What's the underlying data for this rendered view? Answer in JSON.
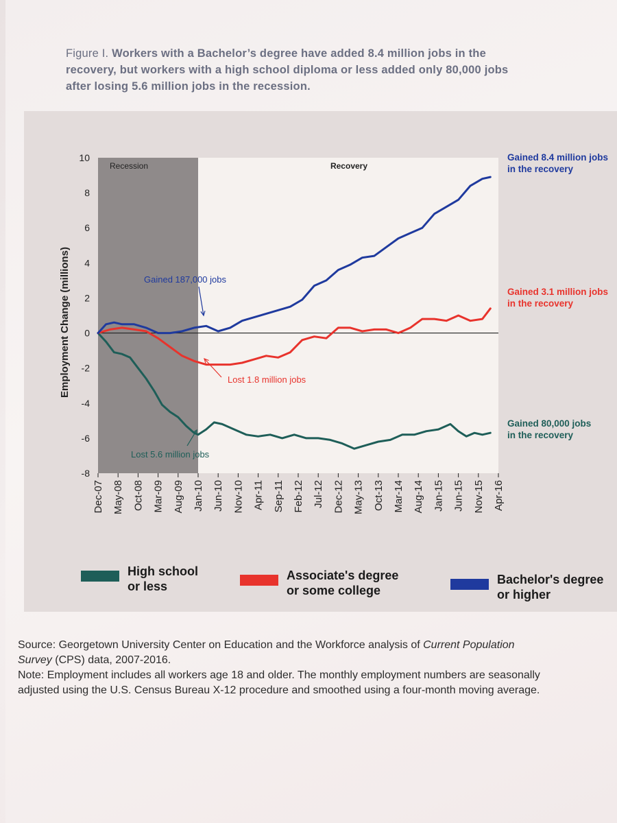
{
  "figure": {
    "label": "Figure I.",
    "title_lines": [
      "Workers with a Bachelor’s degree have added 8.4 million jobs in the",
      "recovery, but workers with a high school diploma or less added only 80,000 jobs",
      "after losing 5.6 million jobs in the recession."
    ]
  },
  "chart_data": {
    "type": "line",
    "ylabel": "Employment Change (millions)",
    "xlabel": "",
    "ylim": [
      -8,
      10
    ],
    "yticks": [
      "10",
      "8",
      "6",
      "4",
      "2",
      "0",
      "-2",
      "-4",
      "-6",
      "-8"
    ],
    "x_range": [
      "2007-12",
      "2016-04"
    ],
    "xticks": [
      "Dec-07",
      "May-08",
      "Oct-08",
      "Mar-09",
      "Aug-09",
      "Jan-10",
      "Jun-10",
      "Nov-10",
      "Apr-11",
      "Sep-11",
      "Feb-12",
      "Jul-12",
      "Dec-12",
      "May-13",
      "Oct-13",
      "Mar-14",
      "Aug-14",
      "Jan-15",
      "Jun-15",
      "Nov-15",
      "Apr-16"
    ],
    "regions": [
      {
        "label": "Recession",
        "from": "2007-12",
        "to": "2010-01",
        "shaded": true
      },
      {
        "label": "Recovery",
        "from": "2010-01",
        "to": "2016-04",
        "shaded": false
      }
    ],
    "grid": false,
    "zero_line": true,
    "series": [
      {
        "name": "High school or less",
        "color": "#1e5e58",
        "points": [
          [
            "2007-12",
            0.0
          ],
          [
            "2008-02",
            -0.5
          ],
          [
            "2008-04",
            -1.1
          ],
          [
            "2008-06",
            -1.2
          ],
          [
            "2008-08",
            -1.4
          ],
          [
            "2008-10",
            -2.0
          ],
          [
            "2008-12",
            -2.6
          ],
          [
            "2009-02",
            -3.3
          ],
          [
            "2009-04",
            -4.1
          ],
          [
            "2009-06",
            -4.5
          ],
          [
            "2009-08",
            -4.8
          ],
          [
            "2009-10",
            -5.3
          ],
          [
            "2009-12",
            -5.7
          ],
          [
            "2010-01",
            -5.8
          ],
          [
            "2010-03",
            -5.5
          ],
          [
            "2010-05",
            -5.1
          ],
          [
            "2010-07",
            -5.2
          ],
          [
            "2010-10",
            -5.5
          ],
          [
            "2011-01",
            -5.8
          ],
          [
            "2011-04",
            -5.9
          ],
          [
            "2011-07",
            -5.8
          ],
          [
            "2011-10",
            -6.0
          ],
          [
            "2012-01",
            -5.8
          ],
          [
            "2012-04",
            -6.0
          ],
          [
            "2012-07",
            -6.0
          ],
          [
            "2012-10",
            -6.1
          ],
          [
            "2013-01",
            -6.3
          ],
          [
            "2013-04",
            -6.6
          ],
          [
            "2013-07",
            -6.4
          ],
          [
            "2013-10",
            -6.2
          ],
          [
            "2014-01",
            -6.1
          ],
          [
            "2014-04",
            -5.8
          ],
          [
            "2014-07",
            -5.8
          ],
          [
            "2014-10",
            -5.6
          ],
          [
            "2015-01",
            -5.5
          ],
          [
            "2015-04",
            -5.2
          ],
          [
            "2015-06",
            -5.6
          ],
          [
            "2015-08",
            -5.9
          ],
          [
            "2015-10",
            -5.7
          ],
          [
            "2015-12",
            -5.8
          ],
          [
            "2016-02",
            -5.7
          ]
        ]
      },
      {
        "name": "Associate's degree or some college",
        "color": "#e8332c",
        "points": [
          [
            "2007-12",
            0.0
          ],
          [
            "2008-03",
            0.2
          ],
          [
            "2008-06",
            0.3
          ],
          [
            "2008-09",
            0.2
          ],
          [
            "2008-12",
            0.1
          ],
          [
            "2009-03",
            -0.3
          ],
          [
            "2009-06",
            -0.8
          ],
          [
            "2009-09",
            -1.3
          ],
          [
            "2009-12",
            -1.6
          ],
          [
            "2010-03",
            -1.8
          ],
          [
            "2010-06",
            -1.8
          ],
          [
            "2010-09",
            -1.8
          ],
          [
            "2010-12",
            -1.7
          ],
          [
            "2011-03",
            -1.5
          ],
          [
            "2011-06",
            -1.3
          ],
          [
            "2011-09",
            -1.4
          ],
          [
            "2011-12",
            -1.1
          ],
          [
            "2012-03",
            -0.4
          ],
          [
            "2012-06",
            -0.2
          ],
          [
            "2012-09",
            -0.3
          ],
          [
            "2012-12",
            0.3
          ],
          [
            "2013-03",
            0.3
          ],
          [
            "2013-06",
            0.1
          ],
          [
            "2013-09",
            0.2
          ],
          [
            "2013-12",
            0.2
          ],
          [
            "2014-03",
            0.0
          ],
          [
            "2014-06",
            0.3
          ],
          [
            "2014-09",
            0.8
          ],
          [
            "2014-12",
            0.8
          ],
          [
            "2015-03",
            0.7
          ],
          [
            "2015-06",
            1.0
          ],
          [
            "2015-09",
            0.7
          ],
          [
            "2015-12",
            0.8
          ],
          [
            "2016-02",
            1.4
          ]
        ]
      },
      {
        "name": "Bachelor's degree or higher",
        "color": "#1f3a9e",
        "points": [
          [
            "2007-12",
            0.0
          ],
          [
            "2008-02",
            0.5
          ],
          [
            "2008-04",
            0.6
          ],
          [
            "2008-06",
            0.5
          ],
          [
            "2008-09",
            0.5
          ],
          [
            "2008-12",
            0.3
          ],
          [
            "2009-03",
            0.0
          ],
          [
            "2009-06",
            0.0
          ],
          [
            "2009-09",
            0.1
          ],
          [
            "2009-12",
            0.3
          ],
          [
            "2010-03",
            0.4
          ],
          [
            "2010-06",
            0.1
          ],
          [
            "2010-09",
            0.3
          ],
          [
            "2010-12",
            0.7
          ],
          [
            "2011-03",
            0.9
          ],
          [
            "2011-06",
            1.1
          ],
          [
            "2011-09",
            1.3
          ],
          [
            "2011-12",
            1.5
          ],
          [
            "2012-03",
            1.9
          ],
          [
            "2012-06",
            2.7
          ],
          [
            "2012-09",
            3.0
          ],
          [
            "2012-12",
            3.6
          ],
          [
            "2013-03",
            3.9
          ],
          [
            "2013-06",
            4.3
          ],
          [
            "2013-09",
            4.4
          ],
          [
            "2013-12",
            4.9
          ],
          [
            "2014-03",
            5.4
          ],
          [
            "2014-06",
            5.7
          ],
          [
            "2014-09",
            6.0
          ],
          [
            "2014-12",
            6.8
          ],
          [
            "2015-03",
            7.2
          ],
          [
            "2015-06",
            7.6
          ],
          [
            "2015-09",
            8.4
          ],
          [
            "2015-12",
            8.8
          ],
          [
            "2016-02",
            8.9
          ]
        ]
      }
    ],
    "annotations": [
      {
        "text": "Gained 187,000 jobs",
        "color": "#1f3a9e"
      },
      {
        "text": "Lost 1.8 million jobs",
        "color": "#e8332c"
      },
      {
        "text": "Lost 5.6 million jobs",
        "color": "#1e5e58"
      }
    ],
    "end_labels": [
      {
        "lines": [
          "Gained 8.4 million jobs",
          "in the recovery"
        ],
        "color": "#1f3a9e"
      },
      {
        "lines": [
          "Gained 3.1 million jobs",
          "in the recovery"
        ],
        "color": "#e8332c"
      },
      {
        "lines": [
          "Gained 80,000 jobs",
          "in the recovery"
        ],
        "color": "#1e5e58"
      }
    ],
    "legend": [
      {
        "lines": [
          "High school",
          "or less"
        ],
        "color": "#1e5e58"
      },
      {
        "lines": [
          "Associate's degree",
          "or some college"
        ],
        "color": "#e8332c"
      },
      {
        "lines": [
          "Bachelor's degree",
          "or higher"
        ],
        "color": "#1f3a9e"
      }
    ]
  },
  "notes": {
    "source_prefix": "Source: Georgetown University Center on Education and the Workforce analysis of ",
    "source_italic_1": "Current Population",
    "source_italic_2": "Survey",
    "source_suffix": " (CPS) data, 2007-2016.",
    "note_line_1": "Note: Employment includes all workers age 18 and older. The monthly employment numbers are seasonally",
    "note_line_2": "adjusted using the U.S. Census Bureau X-12 procedure and smoothed using a four-month moving average."
  }
}
